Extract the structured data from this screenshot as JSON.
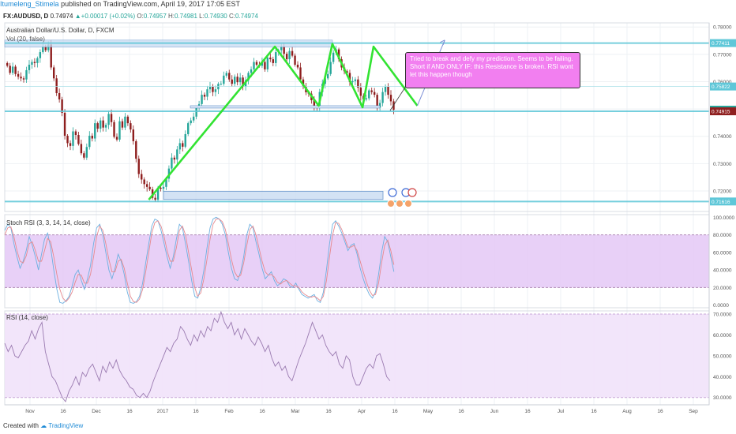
{
  "header": {
    "author": "Itumeleng_Stimela",
    "published": "published on TradingView.com, April 19, 2017 17:05 EST"
  },
  "symbol_row": {
    "symbol": "FX:AUDUSD, D",
    "last": "0.74974",
    "change": "+0.00017 (+0.02%)",
    "open_label": "O:",
    "open": "0.74957",
    "high_label": "H:",
    "high": "0.74981",
    "low_label": "L:",
    "low": "0.74930",
    "close_label": "C:",
    "close": "0.74974"
  },
  "main_title": "Australian Dollar/U.S. Dollar, D, FXCM",
  "vol_label": "Vol (20, false)",
  "stoch_label": "Stoch RSI (3, 3, 14, 14, close)",
  "rsi_label": "RSI (14, close)",
  "annotation": "Tried to break and defy my prediction. Seems to be failing. Short if AND ONLY IF: this Resistance is broken. RSI wont let this happen though",
  "footer": {
    "created_with": "Created with",
    "brand": "TradingView"
  },
  "colors": {
    "up": "#26a69a",
    "down": "#8e1e1e",
    "pattern": "#32e332",
    "hline": "#5fc7d8",
    "arrow": "#7b8fd6",
    "zone_fill": "#c9dcf2",
    "zone_border": "#4a7fc1",
    "band_fill": "#e4c8f6",
    "stoch_k": "#6db0e0",
    "stoch_d": "#e6898f",
    "rsi_line": "#9a7ab0",
    "annotation_bg": "#f27ff0"
  },
  "chart_data": [
    {
      "type": "candlestick",
      "x_ticks": [
        "Nov",
        "16",
        "Dec",
        "16",
        "2017",
        "16",
        "Feb",
        "16",
        "Mar",
        "16",
        "Apr",
        "16",
        "May",
        "16",
        "Jun",
        "16",
        "Jul",
        "16",
        "Aug",
        "16",
        "Sep"
      ],
      "y_ticks": [
        "0.78000",
        "0.77000",
        "0.76000",
        "0.75000",
        "0.74000",
        "0.73000",
        "0.72000"
      ],
      "ylim": [
        0.7125,
        0.7815
      ],
      "price_labels": [
        {
          "text": "0.77411",
          "value": 0.77411,
          "color": "#5fc7d8"
        },
        {
          "text": "0.75822",
          "value": 0.75822,
          "color": "#5fc7d8"
        },
        {
          "text": "0.74974",
          "value": 0.74974,
          "color": "#26a69a"
        },
        {
          "text": "0.74915",
          "value": 0.74915,
          "color": "#8e1e1e"
        },
        {
          "text": "0.71616",
          "value": 0.71616,
          "color": "#5fc7d8"
        }
      ],
      "horizontal_lines": [
        0.77411,
        0.74915,
        0.71616
      ],
      "closes": [
        0.7658,
        0.7632,
        0.7655,
        0.7628,
        0.7618,
        0.7612,
        0.7608,
        0.7642,
        0.7662,
        0.7672,
        0.7668,
        0.7686,
        0.7708,
        0.7728,
        0.7715,
        0.7736,
        0.7652,
        0.7612,
        0.7558,
        0.7535,
        0.7486,
        0.7402,
        0.7375,
        0.7365,
        0.7418,
        0.7405,
        0.7372,
        0.7338,
        0.7322,
        0.7361,
        0.7402,
        0.7392,
        0.7448,
        0.7428,
        0.7458,
        0.7432,
        0.7442,
        0.7482,
        0.7452,
        0.7398,
        0.7388,
        0.7455,
        0.7432,
        0.7472,
        0.7448,
        0.7425,
        0.7382,
        0.7318,
        0.7262,
        0.7242,
        0.7225,
        0.7215,
        0.7206,
        0.7175,
        0.7168,
        0.7212,
        0.7208,
        0.7215,
        0.7245,
        0.7282,
        0.7322,
        0.7315,
        0.7352,
        0.7375,
        0.7362,
        0.7408,
        0.7448,
        0.7458,
        0.7472,
        0.7505,
        0.7518,
        0.7552,
        0.7545,
        0.7572,
        0.7582,
        0.7562,
        0.7572,
        0.7592,
        0.7592,
        0.7622,
        0.7632,
        0.7608,
        0.7592,
        0.7618,
        0.7598,
        0.7615,
        0.7582,
        0.7605,
        0.7632,
        0.7645,
        0.7672,
        0.7662,
        0.7658,
        0.7672,
        0.7645,
        0.7688,
        0.7682,
        0.7668,
        0.7708,
        0.7715,
        0.7728,
        0.7702,
        0.7682,
        0.7712,
        0.7695,
        0.7662,
        0.7652,
        0.7608,
        0.7582,
        0.7561,
        0.7556,
        0.7532,
        0.7508,
        0.7506,
        0.7562,
        0.7592,
        0.7612,
        0.7628,
        0.7672,
        0.7706,
        0.7718,
        0.7682,
        0.7652,
        0.7638,
        0.7632,
        0.7598,
        0.7602,
        0.7608,
        0.7578,
        0.7548,
        0.7535,
        0.7539,
        0.7568,
        0.7562,
        0.7552,
        0.7505,
        0.7522,
        0.7562,
        0.7582,
        0.7552,
        0.7528,
        0.7497
      ],
      "pattern_lines": [
        [
          [
            0.7168,
            52
          ],
          [
            0.7728,
            98
          ],
          [
            0.7512,
            114
          ],
          [
            0.7738,
            119
          ],
          [
            0.7506,
            130
          ],
          [
            0.7728,
            134
          ],
          [
            0.7512,
            150
          ],
          [
            0.7752,
            160
          ]
        ],
        [
          [
            0.7508,
            161
          ],
          [
            0.7512,
            168
          ],
          [
            0.7512,
            174
          ],
          [
            0.7506,
            182
          ],
          [
            0.7503,
            194
          ],
          [
            0.7506,
            211
          ],
          [
            0.7515,
            225
          ],
          [
            0.7728,
            229
          ],
          [
            0.7508,
            244
          ]
        ]
      ],
      "resistance_zone": [
        0.7752,
        0.7726
      ],
      "demand_zone": [
        0.7199,
        0.7169
      ]
    },
    {
      "type": "line",
      "title": "Stoch RSI (3, 3, 14, 14, close)",
      "y_ticks": [
        "100.0000",
        "80.0000",
        "60.0000",
        "40.0000",
        "20.0000",
        "0.0000"
      ],
      "ylim": [
        -3,
        103
      ],
      "bands": [
        20,
        80
      ],
      "series": [
        {
          "name": "K",
          "values": [
            85,
            92,
            88,
            70,
            55,
            42,
            50,
            62,
            78,
            68,
            55,
            40,
            58,
            75,
            82,
            65,
            40,
            18,
            3,
            2,
            5,
            10,
            22,
            35,
            40,
            28,
            18,
            30,
            45,
            70,
            88,
            92,
            80,
            60,
            40,
            30,
            42,
            58,
            50,
            35,
            15,
            3,
            2,
            4,
            10,
            25,
            48,
            70,
            90,
            98,
            96,
            85,
            70,
            55,
            42,
            55,
            75,
            92,
            88,
            70,
            50,
            28,
            10,
            8,
            20,
            40,
            65,
            88,
            98,
            100,
            98,
            92,
            80,
            60,
            42,
            30,
            28,
            38,
            55,
            80,
            92,
            88,
            72,
            58,
            42,
            30,
            34,
            38,
            28,
            22,
            25,
            30,
            28,
            22,
            20,
            25,
            18,
            12,
            10,
            8,
            10,
            12,
            5,
            3,
            15,
            40,
            70,
            92,
            96,
            90,
            82,
            72,
            62,
            68,
            70,
            58,
            42,
            30,
            20,
            12,
            8,
            15,
            35,
            60,
            78,
            72,
            55,
            38
          ]
        },
        {
          "name": "D",
          "values": [
            80,
            88,
            89,
            78,
            62,
            50,
            48,
            56,
            70,
            72,
            62,
            50,
            50,
            62,
            76,
            72,
            55,
            35,
            18,
            8,
            4,
            8,
            15,
            26,
            35,
            34,
            25,
            25,
            35,
            55,
            78,
            90,
            85,
            70,
            52,
            38,
            38,
            50,
            52,
            42,
            25,
            10,
            4,
            3,
            7,
            18,
            38,
            60,
            82,
            94,
            96,
            90,
            78,
            62,
            50,
            50,
            65,
            85,
            90,
            80,
            60,
            40,
            20,
            10,
            14,
            30,
            52,
            75,
            92,
            98,
            98,
            95,
            86,
            70,
            52,
            38,
            32,
            34,
            48,
            68,
            86,
            90,
            80,
            65,
            50,
            38,
            34,
            35,
            32,
            26,
            24,
            27,
            28,
            25,
            22,
            22,
            20,
            15,
            12,
            10,
            9,
            10,
            8,
            5,
            10,
            28,
            55,
            80,
            94,
            93,
            86,
            76,
            66,
            66,
            68,
            62,
            50,
            38,
            27,
            17,
            11,
            12,
            25,
            48,
            68,
            74,
            62,
            46
          ]
        }
      ]
    },
    {
      "type": "line",
      "title": "RSI (14, close)",
      "y_ticks": [
        "70.0000",
        "60.0000",
        "50.0000",
        "40.0000",
        "30.0000"
      ],
      "ylim": [
        26.5,
        71.5
      ],
      "bands": [
        30,
        70
      ],
      "series": [
        {
          "name": "RSI",
          "values": [
            56,
            52,
            55,
            50,
            49,
            52,
            55,
            57,
            62,
            58,
            63,
            66,
            52,
            46,
            40,
            38,
            34,
            30,
            28,
            33,
            36,
            40,
            36,
            42,
            40,
            44,
            46,
            42,
            38,
            45,
            42,
            47,
            44,
            48,
            43,
            40,
            38,
            35,
            34,
            31,
            30,
            32,
            30,
            33,
            38,
            42,
            46,
            50,
            54,
            52,
            56,
            58,
            64,
            62,
            58,
            55,
            60,
            57,
            62,
            59,
            64,
            62,
            68,
            66,
            71,
            66,
            63,
            66,
            60,
            63,
            58,
            63,
            60,
            57,
            55,
            59,
            56,
            52,
            55,
            49,
            45,
            47,
            43,
            45,
            40,
            38,
            43,
            48,
            52,
            56,
            61,
            66,
            62,
            58,
            60,
            55,
            52,
            50,
            52,
            46,
            44,
            50,
            48,
            40,
            36,
            36,
            40,
            44,
            46,
            44,
            50,
            51,
            46,
            40,
            38
          ]
        }
      ]
    }
  ]
}
